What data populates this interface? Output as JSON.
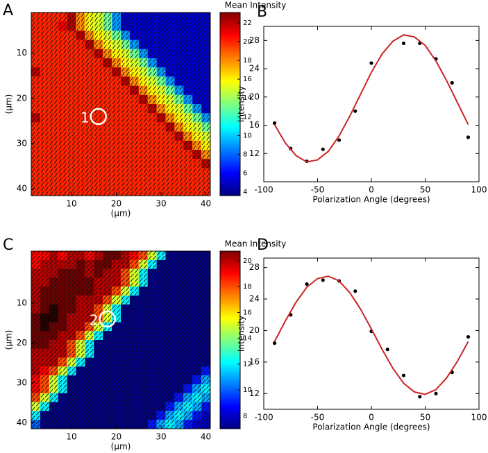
{
  "chart_data": [
    {
      "type": "heatmap",
      "panel_label": "A",
      "colorbar_title": "Mean Intensity",
      "xlabel": "(µm)",
      "ylabel": "(µm)",
      "xlim": [
        1,
        41
      ],
      "ylim": [
        41.5,
        1
      ],
      "xticks": [
        10,
        20,
        30,
        40
      ],
      "yticks": [
        10,
        20,
        30,
        40
      ],
      "clim": [
        3.6,
        23.1
      ],
      "cticks": [
        4,
        6,
        8,
        10,
        12,
        14,
        16,
        18,
        20,
        22
      ],
      "colormap": "jet",
      "orientation_deg": 55,
      "annotations": [
        {
          "label": "1",
          "x": 16,
          "y": 24
        }
      ],
      "values": [
        [
          20,
          20,
          20,
          20,
          22,
          18,
          16,
          15,
          13,
          9,
          5,
          5,
          5,
          5,
          5,
          5,
          5,
          5,
          5,
          5
        ],
        [
          20,
          20,
          20,
          21,
          22,
          18,
          16,
          15,
          13,
          9,
          5,
          5,
          5,
          5,
          5,
          5,
          5,
          5,
          5,
          5
        ],
        [
          20,
          20,
          20,
          20,
          20,
          22,
          18,
          16,
          15,
          13,
          9,
          5,
          5,
          5,
          5,
          5,
          5,
          5,
          5,
          5
        ],
        [
          20,
          20,
          20,
          20,
          20,
          20,
          22,
          18,
          16,
          15,
          13,
          9,
          5,
          5,
          5,
          5,
          5,
          5,
          5,
          5
        ],
        [
          20,
          20,
          20,
          20,
          20,
          20,
          20,
          22,
          18,
          16,
          15,
          13,
          9,
          5,
          5,
          5,
          5,
          5,
          5,
          5
        ],
        [
          20,
          20,
          20,
          20,
          20,
          20,
          20,
          20,
          22,
          18,
          16,
          15,
          13,
          9,
          5,
          5,
          5,
          5,
          5,
          5
        ],
        [
          22,
          20,
          20,
          20,
          20,
          20,
          20,
          20,
          20,
          22,
          18,
          16,
          15,
          13,
          9,
          5,
          5,
          5,
          5,
          5
        ],
        [
          20,
          20,
          20,
          20,
          20,
          20,
          20,
          20,
          20,
          20,
          22,
          18,
          16,
          15,
          13,
          9,
          5,
          5,
          5,
          5
        ],
        [
          20,
          20,
          20,
          20,
          20,
          20,
          20,
          20,
          20,
          20,
          20,
          22,
          18,
          16,
          15,
          13,
          9,
          5,
          5,
          5
        ],
        [
          20,
          20,
          20,
          20,
          20,
          20,
          20,
          20,
          20,
          20,
          20,
          20,
          22,
          18,
          16,
          15,
          13,
          9,
          5,
          5
        ],
        [
          20,
          20,
          20,
          20,
          20,
          20,
          20,
          20,
          20,
          20,
          20,
          20,
          20,
          22,
          18,
          16,
          15,
          13,
          9,
          5
        ],
        [
          22,
          20,
          20,
          20,
          20,
          20,
          20,
          20,
          20,
          20,
          20,
          20,
          20,
          20,
          22,
          18,
          16,
          15,
          13,
          9
        ],
        [
          20,
          20,
          20,
          20,
          20,
          20,
          20,
          20,
          20,
          20,
          20,
          20,
          20,
          20,
          20,
          22,
          18,
          16,
          15,
          13
        ],
        [
          20,
          20,
          20,
          20,
          20,
          20,
          20,
          20,
          20,
          20,
          20,
          20,
          20,
          20,
          20,
          20,
          22,
          18,
          16,
          15
        ],
        [
          20,
          20,
          20,
          20,
          20,
          20,
          20,
          20,
          20,
          20,
          20,
          20,
          20,
          20,
          20,
          20,
          20,
          22,
          18,
          16
        ],
        [
          20,
          20,
          20,
          20,
          20,
          20,
          20,
          20,
          20,
          20,
          20,
          20,
          20,
          20,
          20,
          20,
          20,
          20,
          22,
          18
        ],
        [
          20,
          20,
          20,
          20,
          20,
          20,
          20,
          20,
          20,
          20,
          20,
          20,
          20,
          20,
          20,
          20,
          20,
          20,
          20,
          22
        ],
        [
          20,
          20,
          20,
          20,
          20,
          20,
          20,
          20,
          20,
          20,
          20,
          20,
          20,
          20,
          20,
          20,
          20,
          20,
          20,
          20
        ],
        [
          20,
          20,
          20,
          20,
          20,
          20,
          20,
          20,
          20,
          20,
          20,
          20,
          20,
          20,
          20,
          20,
          20,
          20,
          20,
          20
        ],
        [
          20,
          20,
          20,
          20,
          20,
          20,
          20,
          20,
          20,
          20,
          20,
          20,
          20,
          20,
          20,
          20,
          20,
          20,
          20,
          20
        ]
      ]
    },
    {
      "type": "scatter",
      "panel_label": "B",
      "xlabel": "Polarization Angle (degrees)",
      "ylabel": "Intensity",
      "xlim": [
        -100,
        100
      ],
      "ylim": [
        8,
        30
      ],
      "xticks": [
        -100,
        -50,
        0,
        50,
        100
      ],
      "yticks": [
        12,
        16,
        20,
        24,
        28
      ],
      "series": [
        {
          "mode": "markers",
          "color": "#000000",
          "x": [
            -90,
            -75,
            -60,
            -45,
            -30,
            -15,
            0,
            30,
            45,
            60,
            75,
            90
          ],
          "values": [
            16.3,
            12.7,
            10.9,
            12.6,
            13.9,
            18.0,
            24.8,
            27.6,
            27.6,
            25.4,
            22.0,
            14.3
          ]
        },
        {
          "mode": "line",
          "color": "#cc2222",
          "x": [
            -90,
            -80,
            -70,
            -60,
            -50,
            -40,
            -30,
            -20,
            -10,
            0,
            10,
            20,
            30,
            40,
            50,
            60,
            70,
            80,
            90
          ],
          "values": [
            16.1,
            13.5,
            11.7,
            10.8,
            11.1,
            12.3,
            14.5,
            17.3,
            20.4,
            23.5,
            26.1,
            27.9,
            28.8,
            28.5,
            27.3,
            25.1,
            22.3,
            19.2,
            16.1
          ]
        }
      ]
    },
    {
      "type": "heatmap",
      "panel_label": "C",
      "colorbar_title": "Mean Intensity",
      "xlabel": "(µm)",
      "ylabel": "(µm)",
      "xlim": [
        1,
        41
      ],
      "ylim": [
        41.5,
        -3
      ],
      "xticks": [
        10,
        20,
        30,
        40
      ],
      "yticks": [
        10,
        20,
        30,
        40
      ],
      "clim": [
        7,
        20.75
      ],
      "cticks": [
        8,
        10,
        12,
        14,
        16,
        18,
        20
      ],
      "colormap": "jet",
      "orientation_deg": 50,
      "annotations": [
        {
          "label": "2",
          "x": 18,
          "y": 14
        }
      ],
      "values": [
        [
          19,
          19,
          20,
          19,
          20,
          20,
          19,
          20,
          21,
          21,
          20,
          19,
          18,
          15,
          12,
          7,
          7,
          7,
          7,
          7
        ],
        [
          19,
          20,
          20,
          20,
          20,
          21,
          20,
          21,
          21,
          20,
          20,
          18,
          15,
          12,
          7,
          7,
          7,
          7,
          7,
          7
        ],
        [
          20,
          20,
          20,
          21,
          21,
          21,
          20,
          21,
          20,
          20,
          18,
          15,
          12,
          7,
          7,
          7,
          7,
          7,
          7,
          7
        ],
        [
          20,
          20,
          21,
          21,
          21,
          21,
          21,
          20,
          20,
          20,
          18,
          15,
          12,
          7,
          7,
          7,
          7,
          7,
          7,
          7
        ],
        [
          20,
          21,
          21,
          21,
          21,
          21,
          21,
          20,
          20,
          18,
          15,
          12,
          7,
          7,
          7,
          7,
          7,
          7,
          7,
          7
        ],
        [
          20,
          21,
          21,
          21,
          21,
          20,
          20,
          20,
          18,
          15,
          12,
          7,
          7,
          7,
          7,
          7,
          7,
          7,
          7,
          7
        ],
        [
          20,
          21,
          22,
          21,
          21,
          20,
          20,
          18,
          15,
          12,
          7,
          7,
          7,
          7,
          7,
          7,
          7,
          7,
          7,
          7
        ],
        [
          21,
          22,
          22,
          21,
          20,
          20,
          20,
          18,
          15,
          12,
          7,
          7,
          7,
          7,
          7,
          7,
          7,
          7,
          7,
          7
        ],
        [
          21,
          22,
          21,
          21,
          20,
          20,
          18,
          15,
          12,
          7,
          7,
          7,
          7,
          7,
          7,
          7,
          7,
          7,
          7,
          7
        ],
        [
          21,
          21,
          21,
          20,
          20,
          18,
          15,
          12,
          7,
          7,
          7,
          7,
          7,
          7,
          7,
          7,
          7,
          7,
          7,
          7
        ],
        [
          21,
          21,
          20,
          20,
          18,
          15,
          12,
          7,
          7,
          7,
          7,
          7,
          7,
          7,
          7,
          7,
          7,
          7,
          7,
          7
        ],
        [
          20,
          20,
          20,
          20,
          18,
          15,
          12,
          7,
          7,
          7,
          7,
          7,
          7,
          7,
          7,
          7,
          7,
          7,
          7,
          7
        ],
        [
          20,
          20,
          20,
          18,
          15,
          12,
          7,
          7,
          7,
          7,
          7,
          7,
          7,
          7,
          7,
          7,
          7,
          7,
          7,
          7
        ],
        [
          20,
          19,
          18,
          15,
          12,
          7,
          7,
          7,
          7,
          7,
          7,
          7,
          7,
          7,
          7,
          7,
          7,
          7,
          7,
          9
        ],
        [
          19,
          18,
          15,
          12,
          7,
          7,
          7,
          7,
          7,
          7,
          7,
          7,
          7,
          7,
          7,
          7,
          7,
          7,
          9,
          11
        ],
        [
          19,
          18,
          15,
          12,
          7,
          7,
          7,
          7,
          7,
          7,
          7,
          7,
          7,
          7,
          7,
          7,
          7,
          9,
          11,
          12
        ],
        [
          18,
          15,
          12,
          7,
          7,
          7,
          7,
          7,
          7,
          7,
          7,
          7,
          7,
          7,
          7,
          7,
          9,
          11,
          12,
          11
        ],
        [
          15,
          12,
          7,
          7,
          7,
          7,
          7,
          7,
          7,
          7,
          7,
          7,
          7,
          7,
          7,
          9,
          11,
          12,
          11,
          9
        ],
        [
          12,
          7,
          7,
          7,
          7,
          7,
          7,
          7,
          7,
          7,
          7,
          7,
          7,
          7,
          9,
          11,
          12,
          11,
          9,
          8
        ],
        [
          10,
          7,
          7,
          7,
          7,
          7,
          7,
          7,
          7,
          7,
          7,
          7,
          7,
          9,
          11,
          12,
          11,
          9,
          8,
          8
        ]
      ]
    },
    {
      "type": "scatter",
      "panel_label": "D",
      "xlabel": "Polarization Angle (degrees)",
      "ylabel": "Intensity",
      "xlim": [
        -100,
        100
      ],
      "ylim": [
        10,
        29.2
      ],
      "xticks": [
        -100,
        -50,
        0,
        50,
        100
      ],
      "yticks": [
        12,
        16,
        20,
        24,
        28
      ],
      "series": [
        {
          "mode": "markers",
          "color": "#000000",
          "x": [
            -90,
            -75,
            -60,
            -45,
            -30,
            -15,
            0,
            15,
            30,
            45,
            60,
            75,
            90
          ],
          "values": [
            18.4,
            22.0,
            25.9,
            26.4,
            26.3,
            25.0,
            19.9,
            17.6,
            14.3,
            11.6,
            12.0,
            14.7,
            19.2
          ]
        },
        {
          "mode": "line",
          "color": "#cc2222",
          "x": [
            -90,
            -80,
            -70,
            -60,
            -50,
            -40,
            -30,
            -20,
            -10,
            0,
            10,
            20,
            30,
            40,
            50,
            60,
            70,
            80,
            90
          ],
          "values": [
            18.6,
            21.2,
            23.6,
            25.5,
            26.6,
            26.9,
            26.3,
            24.8,
            22.7,
            20.2,
            17.6,
            15.2,
            13.3,
            12.2,
            11.9,
            12.5,
            14.0,
            16.1,
            18.6
          ]
        }
      ]
    }
  ]
}
